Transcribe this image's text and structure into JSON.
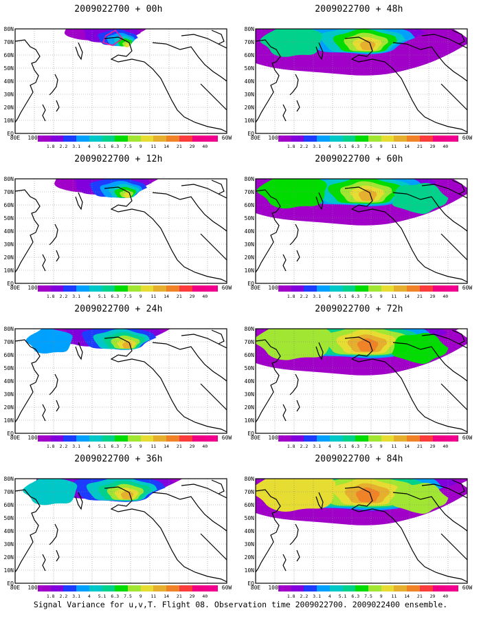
{
  "footer": "Signal Variance for u,v,T. Flight 08. Observation time 2009022700. 2009022400 ensemble.",
  "colorbar": {
    "labels": [
      "1.8",
      "2.2",
      "3.1",
      "4",
      "5.1",
      "6.3",
      "7.5",
      "9",
      "11",
      "14",
      "21",
      "29",
      "40"
    ],
    "colors": [
      "#a000c8",
      "#8200dc",
      "#1e3cff",
      "#00a0ff",
      "#00c8c8",
      "#00d28c",
      "#00dc00",
      "#a0e632",
      "#e6dc32",
      "#e6af2d",
      "#f08228",
      "#fa3c3c",
      "#f00082"
    ]
  },
  "map_axes": {
    "lon_labels": [
      "80E",
      "100E",
      "120E",
      "140E",
      "160E",
      "180",
      "160W",
      "140W",
      "120W",
      "100W",
      "80W",
      "60W"
    ],
    "lat_labels": [
      "80N",
      "70N",
      "60N",
      "50N",
      "40N",
      "30N",
      "20N",
      "10N",
      "EQ"
    ]
  },
  "panels": [
    {
      "title": "2009022700 + 00h",
      "level": 0
    },
    {
      "title": "2009022700 + 12h",
      "level": 1
    },
    {
      "title": "2009022700 + 24h",
      "level": 2
    },
    {
      "title": "2009022700 + 36h",
      "level": 3
    },
    {
      "title": "2009022700 + 48h",
      "level": 4
    },
    {
      "title": "2009022700 + 60h",
      "level": 5
    },
    {
      "title": "2009022700 + 72h",
      "level": 6
    },
    {
      "title": "2009022700 + 84h",
      "level": 7
    }
  ]
}
